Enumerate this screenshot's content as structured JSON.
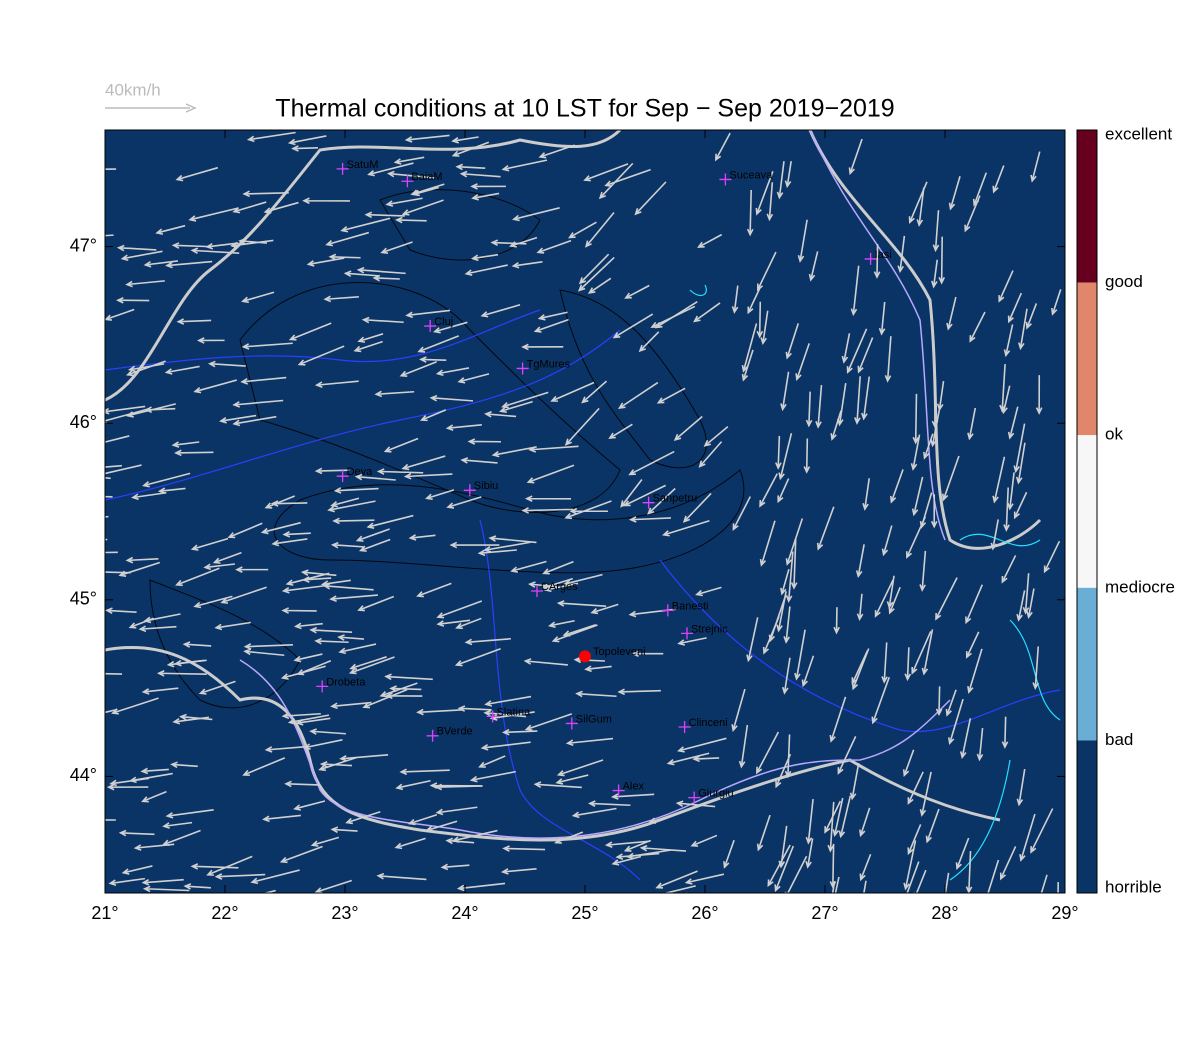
{
  "chart_data": {
    "type": "map",
    "title": "Thermal conditions at 10 LST for Sep − Sep  2019−2019",
    "scale_label": "40km/h",
    "xlim": [
      21,
      29
    ],
    "ylim": [
      43.34,
      47.66
    ],
    "xticks": [
      {
        "value": 21,
        "label": "21°"
      },
      {
        "value": 22,
        "label": "22°"
      },
      {
        "value": 23,
        "label": "23°"
      },
      {
        "value": 24,
        "label": "24°"
      },
      {
        "value": 25,
        "label": "25°"
      },
      {
        "value": 26,
        "label": "26°"
      },
      {
        "value": 27,
        "label": "27°"
      },
      {
        "value": 28,
        "label": "28°"
      },
      {
        "value": 29,
        "label": "29°"
      }
    ],
    "yticks": [
      {
        "value": 44,
        "label": "44°"
      },
      {
        "value": 45,
        "label": "45°"
      },
      {
        "value": 46,
        "label": "46°"
      },
      {
        "value": 47,
        "label": "47°"
      }
    ],
    "background": "#0b3466",
    "cities": [
      {
        "name": "SatuM",
        "lon": 22.98,
        "lat": 47.44
      },
      {
        "name": "BaiaM",
        "lon": 23.52,
        "lat": 47.37
      },
      {
        "name": "Suceava",
        "lon": 26.17,
        "lat": 47.38
      },
      {
        "name": "Iasi",
        "lon": 27.38,
        "lat": 46.93
      },
      {
        "name": "Cluj",
        "lon": 23.71,
        "lat": 46.55
      },
      {
        "name": "TgMures",
        "lon": 24.48,
        "lat": 46.31
      },
      {
        "name": "Deva",
        "lon": 22.98,
        "lat": 45.7
      },
      {
        "name": "Sibiu",
        "lon": 24.04,
        "lat": 45.62
      },
      {
        "name": "Sanpetru",
        "lon": 25.53,
        "lat": 45.55
      },
      {
        "name": "CArges",
        "lon": 24.6,
        "lat": 45.05
      },
      {
        "name": "Banesti",
        "lon": 25.69,
        "lat": 44.94
      },
      {
        "name": "Strejnic",
        "lon": 25.85,
        "lat": 44.81
      },
      {
        "name": "Drobeta",
        "lon": 22.81,
        "lat": 44.51
      },
      {
        "name": "Slatina",
        "lon": 24.23,
        "lat": 44.34
      },
      {
        "name": "SilGum",
        "lon": 24.89,
        "lat": 44.3
      },
      {
        "name": "BVerde",
        "lon": 23.73,
        "lat": 44.23
      },
      {
        "name": "Clinceni",
        "lon": 25.83,
        "lat": 44.28
      },
      {
        "name": "Alex",
        "lon": 25.28,
        "lat": 43.92
      },
      {
        "name": "Giurgiu",
        "lon": 25.91,
        "lat": 43.88
      }
    ],
    "site": {
      "name": "Topoleveni",
      "lon": 25.0,
      "lat": 44.68,
      "color": "#ff0000"
    },
    "colorbar": {
      "labels": [
        "excellent",
        "good",
        "ok",
        "mediocre",
        "bad",
        "horrible"
      ],
      "colors": [
        "#67001f",
        "#e0866a",
        "#f7f7f7",
        "#6aaed6",
        "#0b3466"
      ]
    }
  }
}
